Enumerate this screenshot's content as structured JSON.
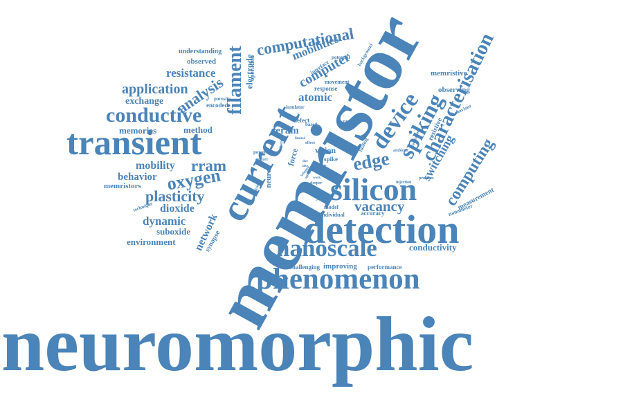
{
  "style": {
    "word_color": "#4a84b8",
    "background": "#ffffff"
  },
  "words": [
    {
      "id": "neuromorphic",
      "text": "neuromorphic"
    },
    {
      "id": "memristor",
      "text": "memristor"
    },
    {
      "id": "current",
      "text": "current"
    },
    {
      "id": "detection",
      "text": "detection"
    },
    {
      "id": "transient",
      "text": "transient"
    },
    {
      "id": "silicon",
      "text": "silicon"
    },
    {
      "id": "phenomenon",
      "text": "phenomenon"
    },
    {
      "id": "nanoscale",
      "text": "nanoscale"
    },
    {
      "id": "conductive",
      "text": "conductive"
    },
    {
      "id": "device",
      "text": "device"
    },
    {
      "id": "spiking",
      "text": "spiking"
    },
    {
      "id": "characterisation",
      "text": "characterisation"
    },
    {
      "id": "filament",
      "text": "filament"
    },
    {
      "id": "computational",
      "text": "computational"
    },
    {
      "id": "computing",
      "text": "computing"
    },
    {
      "id": "edge",
      "text": "edge"
    },
    {
      "id": "oxygen",
      "text": "oxygen"
    },
    {
      "id": "rram",
      "text": "rram"
    },
    {
      "id": "vacancy",
      "text": "vacancy"
    },
    {
      "id": "plasticity",
      "text": "plasticity"
    },
    {
      "id": "application",
      "text": "application"
    },
    {
      "id": "analysis",
      "text": "analysis"
    },
    {
      "id": "computer",
      "text": "computer"
    },
    {
      "id": "mobilities",
      "text": "mobilities"
    },
    {
      "id": "resistance",
      "text": "resistance"
    },
    {
      "id": "switching",
      "text": "switching"
    },
    {
      "id": "mobility",
      "text": "mobility"
    },
    {
      "id": "dioxide",
      "text": "dioxide"
    },
    {
      "id": "dynamic",
      "text": "dynamic"
    },
    {
      "id": "behavior",
      "text": "behavior"
    },
    {
      "id": "reram",
      "text": "reram"
    },
    {
      "id": "atomic",
      "text": "atomic"
    },
    {
      "id": "network",
      "text": "network"
    },
    {
      "id": "method",
      "text": "method"
    },
    {
      "id": "memories",
      "text": "memories"
    },
    {
      "id": "exchange",
      "text": "exchange"
    },
    {
      "id": "electrode",
      "text": "electrode"
    },
    {
      "id": "suboxide",
      "text": "suboxide"
    },
    {
      "id": "environment",
      "text": "environment"
    },
    {
      "id": "memristors",
      "text": "memristors"
    },
    {
      "id": "conductivity",
      "text": "conductivity"
    },
    {
      "id": "observed",
      "text": "observed"
    },
    {
      "id": "understanding",
      "text": "understanding"
    },
    {
      "id": "memristive",
      "text": "memristive"
    },
    {
      "id": "observing",
      "text": "observing"
    },
    {
      "id": "measurement",
      "text": "measurement"
    },
    {
      "id": "nanometer",
      "text": "nanometer"
    },
    {
      "id": "resistive",
      "text": "resistive"
    },
    {
      "id": "improving",
      "text": "improving"
    },
    {
      "id": "performance",
      "text": "performance"
    },
    {
      "id": "challenging",
      "text": "challenging"
    },
    {
      "id": "synapse",
      "text": "synapse"
    },
    {
      "id": "neural",
      "text": "neural"
    },
    {
      "id": "force",
      "text": "force"
    },
    {
      "id": "vision",
      "text": "vision"
    },
    {
      "id": "spike",
      "text": "spike"
    },
    {
      "id": "accuracy",
      "text": "accuracy"
    },
    {
      "id": "individual",
      "text": "individual"
    },
    {
      "id": "model",
      "text": "model"
    },
    {
      "id": "encoded",
      "text": "encoded"
    },
    {
      "id": "operation",
      "text": "operation"
    },
    {
      "id": "movement",
      "text": "movement"
    },
    {
      "id": "response",
      "text": "response"
    },
    {
      "id": "interface",
      "text": "interface"
    },
    {
      "id": "potential",
      "text": "potential"
    },
    {
      "id": "background",
      "text": "background"
    },
    {
      "id": "porosity",
      "text": "porosity"
    },
    {
      "id": "insulator",
      "text": "insulator"
    },
    {
      "id": "defect",
      "text": "defect"
    },
    {
      "id": "based",
      "text": "based"
    },
    {
      "id": "present",
      "text": "present"
    },
    {
      "id": "technique",
      "text": "technique"
    },
    {
      "id": "power",
      "text": "power"
    },
    {
      "id": "surface",
      "text": "surface"
    },
    {
      "id": "sensitivity",
      "text": "sensitivity"
    },
    {
      "id": "reveal",
      "text": "reveal"
    },
    {
      "id": "effect",
      "text": "effect"
    },
    {
      "id": "limited",
      "text": "limited"
    },
    {
      "id": "finding",
      "text": "finding"
    },
    {
      "id": "ambient",
      "text": "ambient"
    },
    {
      "id": "injection",
      "text": "injection"
    },
    {
      "id": "problem",
      "text": "problem"
    },
    {
      "id": "formation",
      "text": "formation"
    },
    {
      "id": "behaviour",
      "text": "behaviour"
    },
    {
      "id": "change",
      "text": "change"
    },
    {
      "id": "winner",
      "text": "winner"
    },
    {
      "id": "stack",
      "text": "stack"
    },
    {
      "id": "deeper",
      "text": "deeper"
    },
    {
      "id": "work",
      "text": "work"
    },
    {
      "id": "take",
      "text": "take"
    },
    {
      "id": "due",
      "text": "due"
    },
    {
      "id": "aging",
      "text": "aging"
    }
  ]
}
